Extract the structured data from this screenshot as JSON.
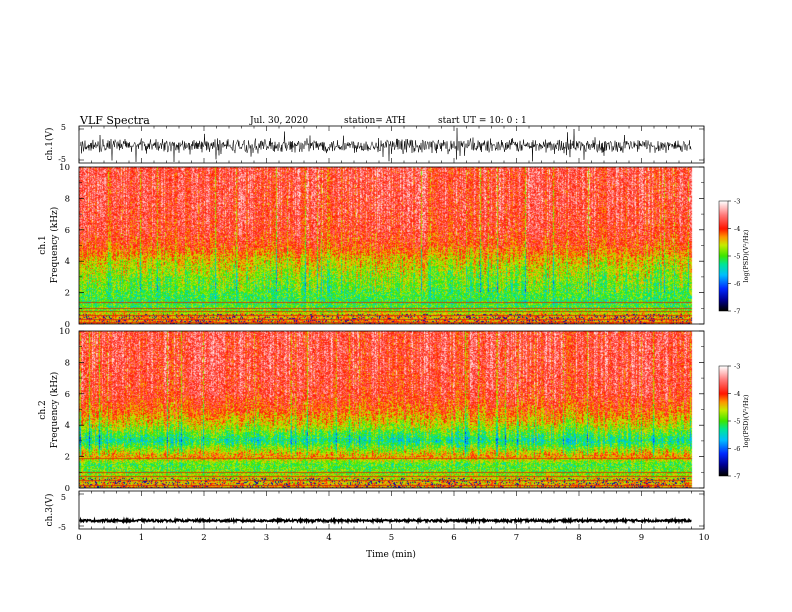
{
  "header": {
    "title": "VLF  Spectra",
    "date": "Jul.  30,  2020",
    "station": "station= ATH",
    "start_ut": "start  UT  =    10: 0   : 1"
  },
  "chart_data": [
    {
      "type": "line",
      "panel": "ch1-waveform",
      "ylabel": "ch.1(V)",
      "ylim": [
        -5,
        5
      ],
      "yticks": [
        "5",
        "-5"
      ],
      "xlim": [
        0,
        10
      ],
      "series": [
        {
          "baseline_v": -0.3,
          "amplitude_v": 2.2,
          "color": "#000000"
        }
      ]
    },
    {
      "type": "heatmap",
      "panel": "ch1-spectrogram",
      "ylabel_line1": "ch.1",
      "ylabel_line2": "Frequency  (kHz)",
      "ylim": [
        0,
        10
      ],
      "yticks": [
        "0",
        "2",
        "4",
        "6",
        "8",
        "10"
      ],
      "xlim": [
        0,
        9.8
      ],
      "colorbar": {
        "label": "log(PSD)(V²/Hz)",
        "ticks": [
          "-3",
          "-4",
          "-5",
          "-6",
          "-7"
        ],
        "range": [
          -7,
          -3
        ]
      },
      "psd_profile": {
        "freq_khz": [
          0,
          0.5,
          1,
          1.5,
          2,
          3,
          4,
          5,
          6,
          8,
          10
        ],
        "log_psd": [
          -4.2,
          -4.4,
          -5.0,
          -5.1,
          -5.0,
          -4.8,
          -4.5,
          -4.0,
          -3.8,
          -3.7,
          -3.7
        ]
      },
      "lines_khz": [
        0.1,
        0.3,
        0.55,
        0.8,
        1.05,
        1.4
      ]
    },
    {
      "type": "heatmap",
      "panel": "ch2-spectrogram",
      "ylabel_line1": "ch.2",
      "ylabel_line2": "Frequency  (kHz)",
      "ylim": [
        0,
        10
      ],
      "yticks": [
        "0",
        "2",
        "4",
        "6",
        "8",
        "10"
      ],
      "xlim": [
        0,
        9.8
      ],
      "colorbar": {
        "label": "log(PSD)(V²/Hz)",
        "ticks": [
          "-3",
          "-4",
          "-5",
          "-6",
          "-7"
        ],
        "range": [
          -7,
          -3
        ]
      },
      "psd_profile": {
        "freq_khz": [
          0,
          0.5,
          1,
          1.5,
          2,
          3,
          4,
          5,
          6,
          8,
          10
        ],
        "log_psd": [
          -4.3,
          -4.5,
          -4.9,
          -5.0,
          -4.3,
          -5.3,
          -4.6,
          -4.1,
          -3.8,
          -3.7,
          -3.7
        ]
      },
      "lines_khz": [
        0.2,
        0.5,
        0.75,
        1.0,
        1.9
      ]
    },
    {
      "type": "line",
      "panel": "ch3-waveform",
      "ylabel": "ch.3(V)",
      "ylim": [
        -5,
        5
      ],
      "yticks": [
        "5",
        "-5"
      ],
      "xlim": [
        0,
        10
      ],
      "xlabel": "Time  (min)",
      "xticks": [
        "0",
        "1",
        "2",
        "3",
        "4",
        "5",
        "6",
        "7",
        "8",
        "9",
        "10"
      ],
      "series": [
        {
          "baseline_v": -2.8,
          "amplitude_v": 0.3,
          "color": "#000000"
        }
      ]
    }
  ]
}
